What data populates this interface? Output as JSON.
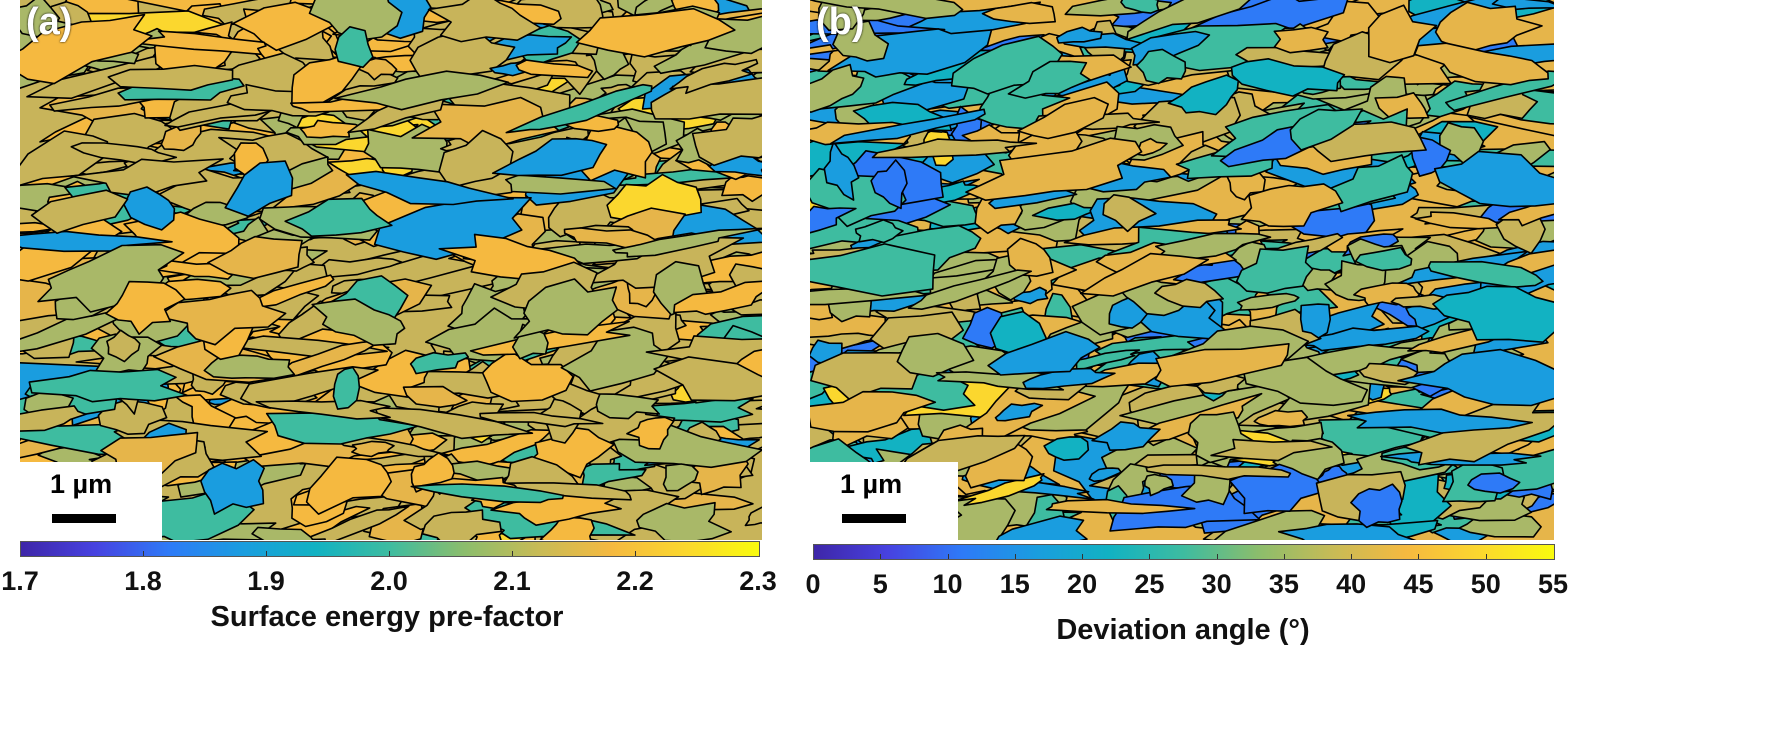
{
  "chart_data": [
    {
      "type": "heatmap",
      "panel_label": "(a)",
      "scale_bar": "1 µm",
      "colorbar": {
        "label": "Surface energy pre-factor",
        "ticks": [
          "1.7",
          "1.8",
          "1.9",
          "2.0",
          "2.1",
          "2.2",
          "2.3"
        ],
        "range": [
          1.7,
          2.3
        ],
        "colormap": "parula",
        "orientation": "horizontal"
      }
    },
    {
      "type": "heatmap",
      "panel_label": "(b)",
      "scale_bar": "1 µm",
      "colorbar": {
        "label": "Deviation angle (°)",
        "ticks": [
          "0",
          "5",
          "10",
          "15",
          "20",
          "25",
          "30",
          "35",
          "40",
          "45",
          "50",
          "55"
        ],
        "range": [
          0,
          55
        ],
        "colormap": "parula",
        "orientation": "horizontal"
      }
    }
  ],
  "colors": {
    "parula": [
      "#3e26a8",
      "#4742e0",
      "#2e7af7",
      "#1a9ddf",
      "#12b2c2",
      "#3ebca0",
      "#8bbd6c",
      "#c7bb56",
      "#f5b940",
      "#fbd72e",
      "#f9fb0e"
    ],
    "grain_boundary": "#000000"
  }
}
